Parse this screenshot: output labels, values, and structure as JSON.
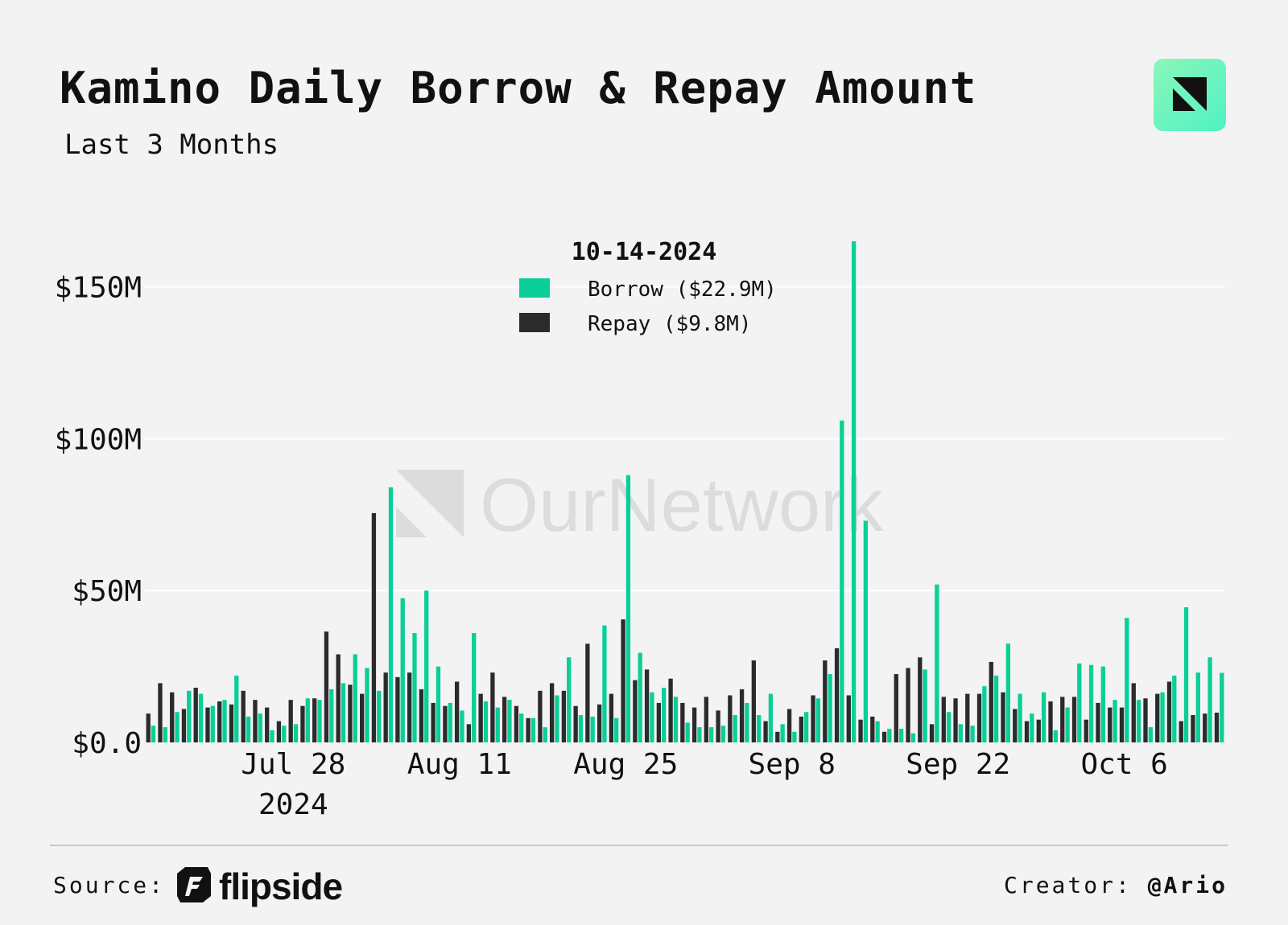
{
  "title": "Kamino Daily Borrow & Repay Amount",
  "subtitle": "Last 3 Months",
  "watermark": "OurNetwork",
  "footer": {
    "source_label": "Source:",
    "source_brand": "flipside",
    "creator_label": "Creator:",
    "creator_handle": "@Ario"
  },
  "icons": [
    "ournetwork-logo-icon",
    "flipside-logo-icon"
  ],
  "chart_data": {
    "type": "bar",
    "title": "Kamino Daily Borrow & Repay Amount",
    "subtitle": "Last 3 Months",
    "xlabel": "",
    "ylabel": "",
    "ylim": [
      0,
      165
    ],
    "y_unit": "$M",
    "yticks": [
      0,
      50,
      100,
      150
    ],
    "ytick_labels": [
      "$0.0",
      "$50M",
      "$100M",
      "$150M"
    ],
    "xtick_labels": [
      "Jul 28",
      "Aug 11",
      "Aug 25",
      "Sep 8",
      "Sep 22",
      "Oct 6"
    ],
    "xtick_dates": [
      "2024-07-28",
      "2024-08-11",
      "2024-08-25",
      "2024-09-08",
      "2024-09-22",
      "2024-10-06"
    ],
    "xtick_year_label": "2024",
    "x_start": "2024-07-16",
    "x_end": "2024-10-14",
    "grid": true,
    "legend": {
      "position": "top-center",
      "title": "10-14-2024",
      "entries": [
        {
          "label": "Borrow ($22.9M)",
          "color": "#0acf97"
        },
        {
          "label": "Repay ($9.8M)",
          "color": "#2b2b2b"
        }
      ]
    },
    "series": [
      {
        "name": "Borrow",
        "color": "#0acf97",
        "values": [
          5.5,
          5,
          10,
          17,
          16,
          12,
          14,
          22,
          8.5,
          9.5,
          4,
          5.5,
          6,
          14.5,
          14,
          17.5,
          19.5,
          29,
          24.5,
          17,
          84,
          47.5,
          36,
          50,
          25,
          13,
          10.5,
          36,
          13.5,
          11.5,
          14,
          9.5,
          8,
          5,
          15.5,
          28,
          9,
          8.5,
          38.5,
          8,
          88,
          29.5,
          16.5,
          18,
          15,
          6.5,
          5,
          5,
          5.5,
          9,
          13,
          9,
          16,
          6,
          3.5,
          10,
          14.5,
          22.5,
          106,
          165,
          73,
          7,
          4.5,
          4.5,
          3,
          24,
          52,
          10,
          6,
          5.5,
          18.5,
          22,
          32.5,
          16,
          9.5,
          16.5,
          4,
          11.5,
          26,
          25.5,
          25,
          14,
          41,
          14,
          5,
          16.5,
          22,
          44.5,
          23,
          28,
          22.9
        ]
      },
      {
        "name": "Repay",
        "color": "#2b2b2b",
        "values": [
          9.5,
          19.5,
          16.5,
          11,
          18,
          11.5,
          13.5,
          12.5,
          17,
          14,
          11.5,
          7,
          14,
          12,
          14.5,
          36.5,
          29,
          19,
          16,
          75.5,
          23,
          21.5,
          23,
          17.5,
          13,
          12,
          20,
          6,
          16,
          23,
          15,
          12,
          8,
          17,
          19.5,
          17,
          12,
          32.5,
          12.5,
          16,
          40.5,
          20.5,
          24,
          13,
          21,
          13,
          11.5,
          15,
          10.5,
          15.5,
          17.5,
          27,
          7,
          3.5,
          11,
          8.5,
          15.5,
          27,
          31,
          15.5,
          7.5,
          8.5,
          3.5,
          22.5,
          24.5,
          28,
          6,
          15,
          14.5,
          16,
          16,
          26.5,
          16.5,
          11,
          7,
          7.5,
          13.5,
          15,
          15,
          7.5,
          13,
          11.5,
          11.5,
          19.5,
          14.5,
          16,
          20,
          7,
          9,
          9.5,
          9.8
        ]
      }
    ]
  }
}
